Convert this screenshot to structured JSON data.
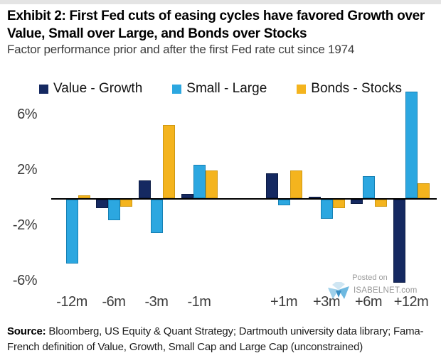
{
  "header": {
    "title_line1": "Exhibit 2: First Fed cuts of easing cycles have favored Growth over",
    "title_line2": "Value, Small over Large, and Bonds over Stocks",
    "subtitle": "Factor performance prior and after the first Fed rate cut since 1974"
  },
  "chart_data": {
    "type": "bar",
    "title": "Exhibit 2: First Fed cuts of easing cycles have favored Growth over Value, Small over Large, and Bonds over Stocks",
    "subtitle": "Factor performance prior and after the first Fed rate cut since 1974",
    "categories": [
      "-12m",
      "-6m",
      "-3m",
      "-1m",
      "+1m",
      "+3m",
      "+6m",
      "+12m"
    ],
    "series": [
      {
        "name": "Value - Growth",
        "color": "#152961",
        "border": "#0c1c45",
        "values": [
          0.0,
          -0.6,
          1.3,
          0.3,
          1.8,
          0.1,
          -0.3,
          -6.0
        ]
      },
      {
        "name": "Small - Large",
        "color": "#2ca7e0",
        "border": "#1580b4",
        "values": [
          -4.6,
          -1.5,
          -2.4,
          2.4,
          -0.4,
          -1.4,
          1.6,
          7.7
        ]
      },
      {
        "name": "Bonds - Stocks",
        "color": "#f4b41e",
        "border": "#cf9812",
        "values": [
          0.2,
          -0.5,
          5.3,
          2.0,
          2.0,
          -0.6,
          -0.5,
          1.1
        ]
      }
    ],
    "y_ticks": [
      {
        "label": "6%",
        "value": 6
      },
      {
        "label": "2%",
        "value": 2
      },
      {
        "label": "-2%",
        "value": -2
      },
      {
        "label": "-6%",
        "value": -6
      }
    ],
    "ylim": [
      -7.5,
      8
    ],
    "unit": "%",
    "grid": false,
    "legend_position": "top"
  },
  "watermark": {
    "posted_on": "Posted on",
    "site": "ISABELNET.com",
    "logo": "isabelnet-logo"
  },
  "source": {
    "label": "Source:",
    "text": " Bloomberg, US Equity & Quant Strategy; Dartmouth university data library; Fama-French definition of Value, Growth, Small Cap and Large Cap (unconstrained)"
  }
}
